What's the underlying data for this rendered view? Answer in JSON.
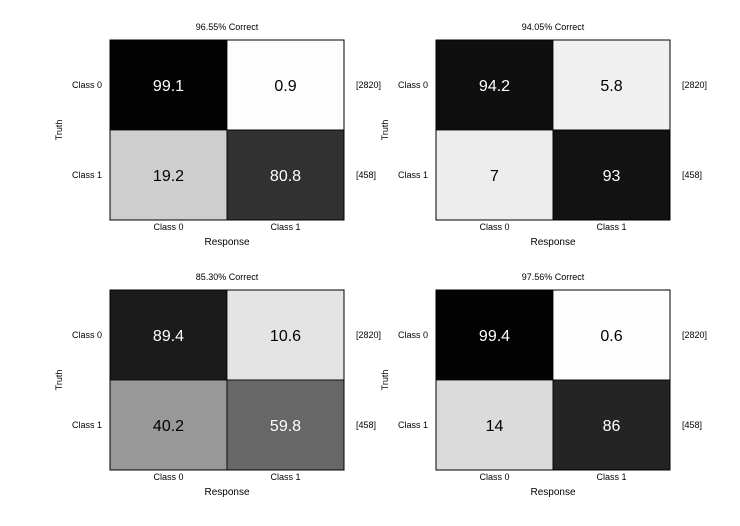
{
  "colors": {
    "cell_dark": "#000000",
    "cell_light": "#ffffff",
    "text_on_dark": "#ffffff",
    "text_on_light": "#000000",
    "border": "#000000"
  },
  "chart_data": [
    {
      "type": "heatmap",
      "title": "96.55% Correct",
      "xlabel": "Response",
      "ylabel": "Truth",
      "x_categories": [
        "Class 0",
        "Class 1"
      ],
      "y_categories": [
        "Class 0",
        "Class 1"
      ],
      "values": [
        [
          99.1,
          0.9
        ],
        [
          19.2,
          80.8
        ]
      ],
      "value_labels": [
        [
          "99.1",
          "0.9"
        ],
        [
          "19.2",
          "80.8"
        ]
      ],
      "row_counts": [
        "[2820]",
        "[458]"
      ],
      "value_range": [
        0,
        100
      ],
      "colormap": "gray reversed (0 = white, 100 = black)"
    },
    {
      "type": "heatmap",
      "title": "94.05% Correct",
      "xlabel": "Response",
      "ylabel": "Truth",
      "x_categories": [
        "Class 0",
        "Class 1"
      ],
      "y_categories": [
        "Class 0",
        "Class 1"
      ],
      "values": [
        [
          94.2,
          5.8
        ],
        [
          7,
          93
        ]
      ],
      "value_labels": [
        [
          "94.2",
          "5.8"
        ],
        [
          "7",
          "93"
        ]
      ],
      "row_counts": [
        "[2820]",
        "[458]"
      ],
      "value_range": [
        0,
        100
      ],
      "colormap": "gray reversed (0 = white, 100 = black)"
    },
    {
      "type": "heatmap",
      "title": "85.30% Correct",
      "xlabel": "Response",
      "ylabel": "Truth",
      "x_categories": [
        "Class 0",
        "Class 1"
      ],
      "y_categories": [
        "Class 0",
        "Class 1"
      ],
      "values": [
        [
          89.4,
          10.6
        ],
        [
          40.2,
          59.8
        ]
      ],
      "value_labels": [
        [
          "89.4",
          "10.6"
        ],
        [
          "40.2",
          "59.8"
        ]
      ],
      "row_counts": [
        "[2820]",
        "[458]"
      ],
      "value_range": [
        0,
        100
      ],
      "colormap": "gray reversed (0 = white, 100 = black)"
    },
    {
      "type": "heatmap",
      "title": "97.56% Correct",
      "xlabel": "Response",
      "ylabel": "Truth",
      "x_categories": [
        "Class 0",
        "Class 1"
      ],
      "y_categories": [
        "Class 0",
        "Class 1"
      ],
      "values": [
        [
          99.4,
          0.6
        ],
        [
          14,
          86
        ]
      ],
      "value_labels": [
        [
          "99.4",
          "0.6"
        ],
        [
          "14",
          "86"
        ]
      ],
      "row_counts": [
        "[2820]",
        "[458]"
      ],
      "value_range": [
        0,
        100
      ],
      "colormap": "gray reversed (0 = white, 100 = black)"
    }
  ]
}
